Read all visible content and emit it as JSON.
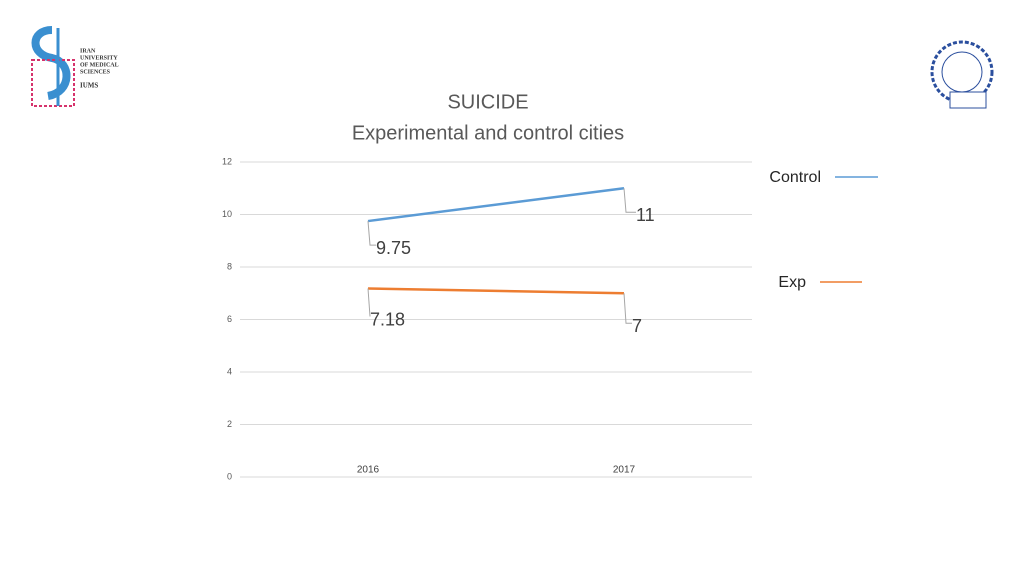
{
  "logo": {
    "lines": [
      "IRAN",
      "UNIVERSITY",
      "OF MEDICAL",
      "SCIENCES"
    ],
    "acronym": "IUMS"
  },
  "chart_data": {
    "type": "line",
    "title": "SUICIDE",
    "subtitle": "Experimental and control cities",
    "categories": [
      "2016",
      "2017"
    ],
    "series": [
      {
        "name": "Control",
        "color": "#5b9bd5",
        "values": [
          9.75,
          11
        ]
      },
      {
        "name": "Exp",
        "color": "#ed7d31",
        "values": [
          7.18,
          7
        ]
      }
    ],
    "ylim": [
      0,
      12
    ],
    "yticks": [
      0,
      2,
      4,
      6,
      8,
      10,
      12
    ],
    "grid": true,
    "legend": "right"
  }
}
